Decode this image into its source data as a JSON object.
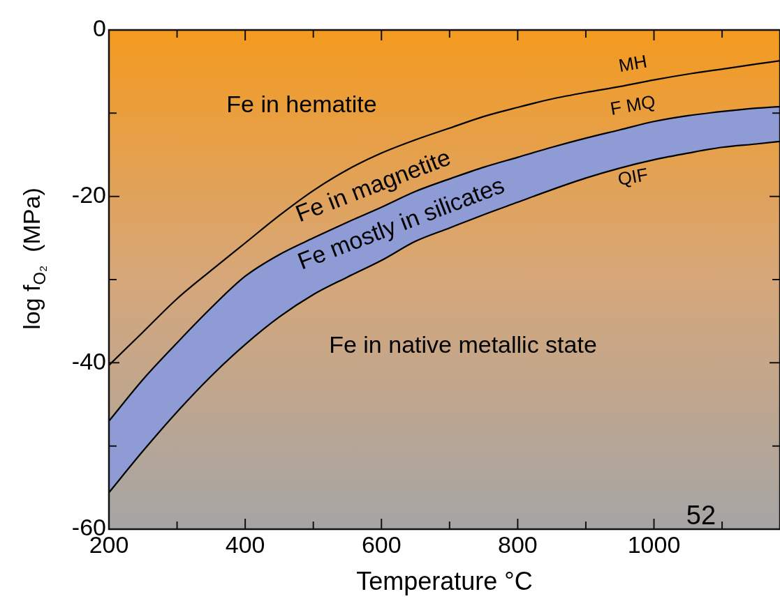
{
  "chart_data": {
    "type": "line",
    "xlabel": "Temperature °C",
    "ylabel": "log f$_{O₂}$  (MPa)",
    "x": [
      200,
      250,
      300,
      350,
      400,
      450,
      500,
      550,
      600,
      650,
      700,
      750,
      800,
      850,
      900,
      950,
      1000,
      1050,
      1100,
      1150,
      1185
    ],
    "series": [
      {
        "name": "MH",
        "color": "#000000",
        "values": [
          -40.3,
          -36.3,
          -32.3,
          -28.9,
          -25.6,
          -22.3,
          -19.3,
          -16.8,
          -14.8,
          -13.2,
          -11.8,
          -10.4,
          -9.3,
          -8.3,
          -7.5,
          -6.8,
          -6.0,
          -5.3,
          -4.7,
          -4.1,
          -3.7
        ]
      },
      {
        "name": "F MQ",
        "color": "#000000",
        "values": [
          -47.0,
          -42.0,
          -37.6,
          -33.4,
          -29.6,
          -27.0,
          -25.0,
          -23.1,
          -21.3,
          -19.4,
          -17.9,
          -16.5,
          -15.3,
          -14.1,
          -13.0,
          -12.0,
          -11.0,
          -10.3,
          -9.8,
          -9.4,
          -9.2
        ],
        "lower": [
          -55.6,
          -50.6,
          -45.9,
          -41.6,
          -37.8,
          -34.5,
          -31.8,
          -29.7,
          -27.7,
          -25.4,
          -23.8,
          -22.2,
          -20.7,
          -19.2,
          -17.8,
          -16.6,
          -15.6,
          -14.8,
          -14.1,
          -13.7,
          -13.4
        ],
        "upper": [
          -47.0,
          -42.0,
          -37.6,
          -33.4,
          -29.6,
          -27.0,
          -25.0,
          -23.1,
          -21.3,
          -19.4,
          -17.9,
          -16.5,
          -15.3,
          -14.1,
          -13.0,
          -12.0,
          -11.0,
          -10.3,
          -9.8,
          -9.4,
          -9.2
        ]
      },
      {
        "name": "QIF",
        "color": "#000000",
        "values": [
          -55.6,
          -50.6,
          -45.9,
          -41.6,
          -37.8,
          -34.5,
          -31.8,
          -29.7,
          -27.7,
          -25.4,
          -23.8,
          -22.2,
          -20.7,
          -19.2,
          -17.8,
          -16.6,
          -15.6,
          -14.8,
          -14.1,
          -13.7,
          -13.4
        ]
      }
    ],
    "xlim": [
      200,
      1185
    ],
    "xticks": [
      200,
      {
        "value": 300,
        "label": null
      },
      400,
      {
        "value": 500,
        "label": null
      },
      600,
      {
        "value": 700,
        "label": null
      },
      800,
      {
        "value": 900,
        "label": null
      },
      1000,
      {
        "value": 1100,
        "label": null
      }
    ],
    "ylim": [
      -60,
      0
    ],
    "yticks": [
      -60,
      {
        "value": -50,
        "label": null
      },
      -40,
      {
        "value": -30,
        "label": null
      },
      -20,
      {
        "value": -10,
        "label": null
      },
      0
    ],
    "grid": false,
    "legend": false,
    "marker": "none",
    "line_style": "solid",
    "annotations": [
      "Fe in hematite",
      "Fe in magnetite",
      "Fe mostly in silicates",
      "Fe in native metallic state",
      "52"
    ]
  }
}
